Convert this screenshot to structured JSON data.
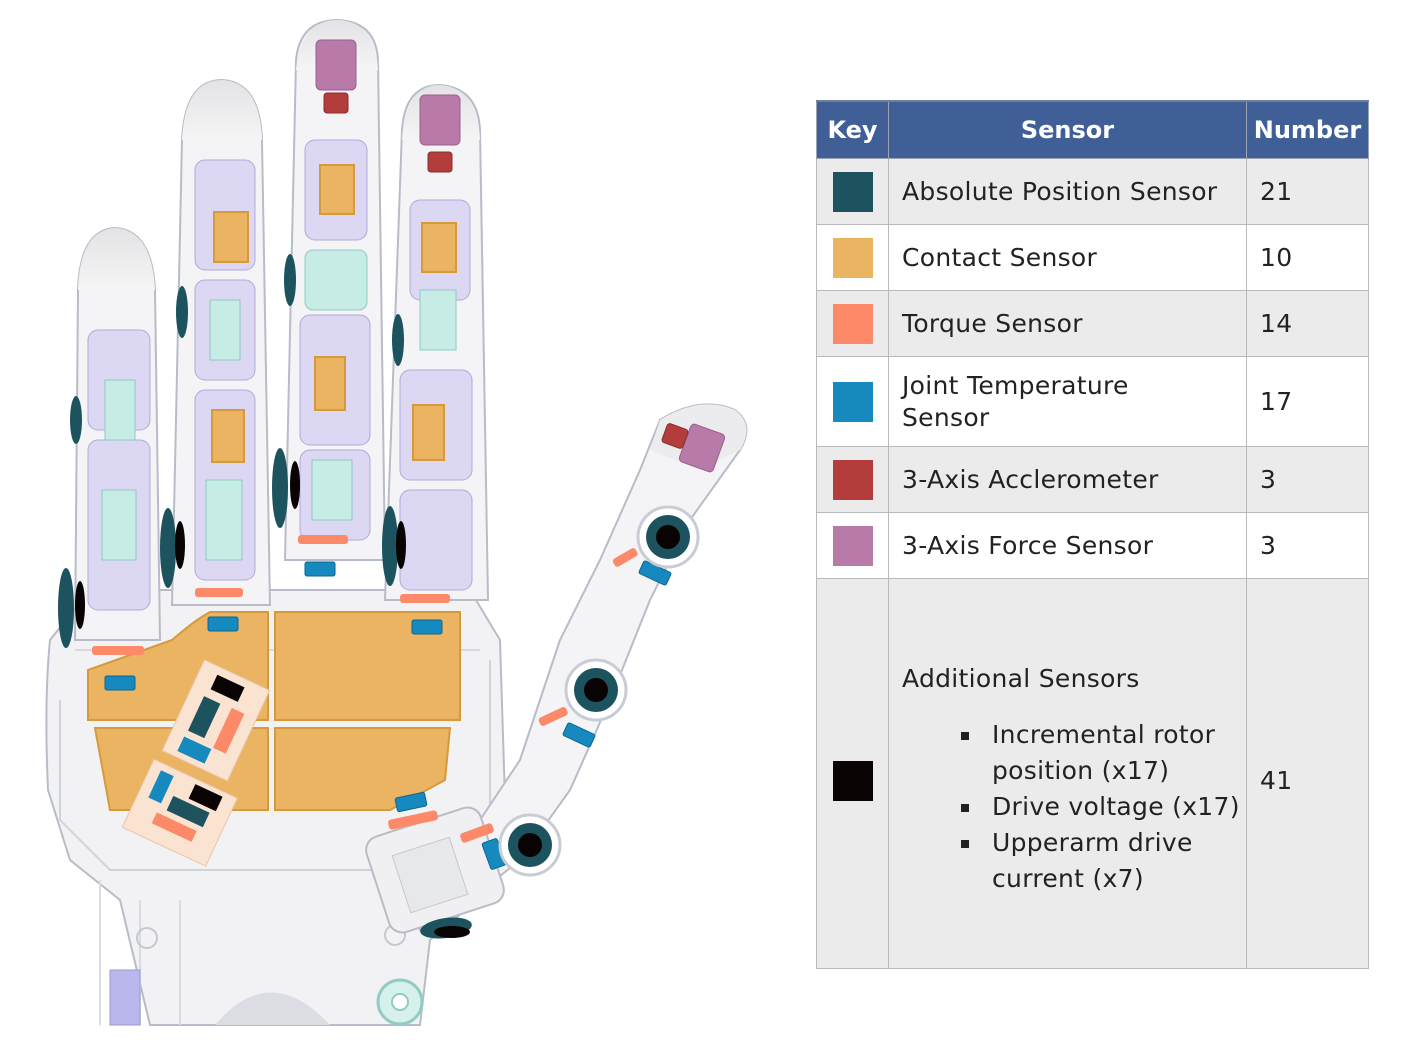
{
  "table": {
    "headers": {
      "key": "Key",
      "sensor": "Sensor",
      "number": "Number"
    },
    "rows": [
      {
        "color": "#1d535f",
        "name": "Absolute Position Sensor",
        "number": "21"
      },
      {
        "color": "#ebb463",
        "name": "Contact Sensor",
        "number": "10"
      },
      {
        "color": "#fc8967",
        "name": "Torque Sensor",
        "number": "14"
      },
      {
        "color": "#1689bf",
        "name": "Joint Temperature Sensor",
        "number": "17"
      },
      {
        "color": "#b33d3d",
        "name": "3-Axis Acclerometer",
        "number": "3"
      },
      {
        "color": "#b77aa9",
        "name": "3-Axis Force Sensor",
        "number": "3"
      },
      {
        "color": "#0a0303",
        "name": "Additional Sensors",
        "number": "41",
        "details": [
          "Incremental rotor position (x17)",
          "Drive voltage (x17)",
          "Upperarm drive current (x7)"
        ]
      }
    ]
  },
  "diagram": {
    "description_colors": {
      "body": "#f3f3f5",
      "outline": "#b9bdc8",
      "joint": "#dcd6f2",
      "mechanism": "#bfe6e0"
    }
  }
}
